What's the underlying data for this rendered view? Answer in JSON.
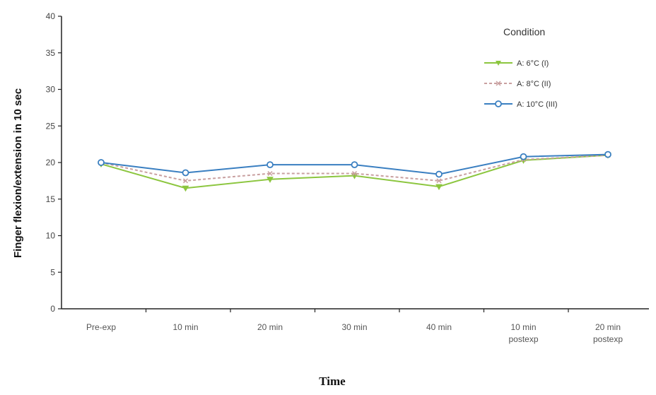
{
  "chart_data": {
    "type": "line",
    "title": "",
    "xlabel": "Time",
    "ylabel": "Finger flexion/extension in 10 sec",
    "ylim": [
      0,
      40
    ],
    "yticks": [
      0,
      5,
      10,
      15,
      20,
      25,
      30,
      35,
      40
    ],
    "categories": [
      [
        "Pre-exp"
      ],
      [
        "10 min"
      ],
      [
        "20 min"
      ],
      [
        "30 min"
      ],
      [
        "40 min"
      ],
      [
        "10 min",
        "postexp"
      ],
      [
        "20 min",
        "postexp"
      ]
    ],
    "grid": false,
    "legend": {
      "title": "Condition",
      "placement": "top-right"
    },
    "series": [
      {
        "name": "A: 6°C (I)",
        "color": "#8cc63f",
        "values": [
          19.8,
          16.5,
          17.7,
          18.2,
          16.7,
          20.3,
          21.0
        ]
      },
      {
        "name": "A: 8°C (II)",
        "color": "#c9a0a0",
        "values": [
          20.0,
          17.5,
          18.5,
          18.5,
          17.5,
          20.4,
          21.0
        ]
      },
      {
        "name": "A: 10°C (III)",
        "color": "#3a7fc1",
        "values": [
          20.0,
          18.6,
          19.7,
          19.7,
          18.4,
          20.8,
          21.1
        ]
      }
    ]
  }
}
